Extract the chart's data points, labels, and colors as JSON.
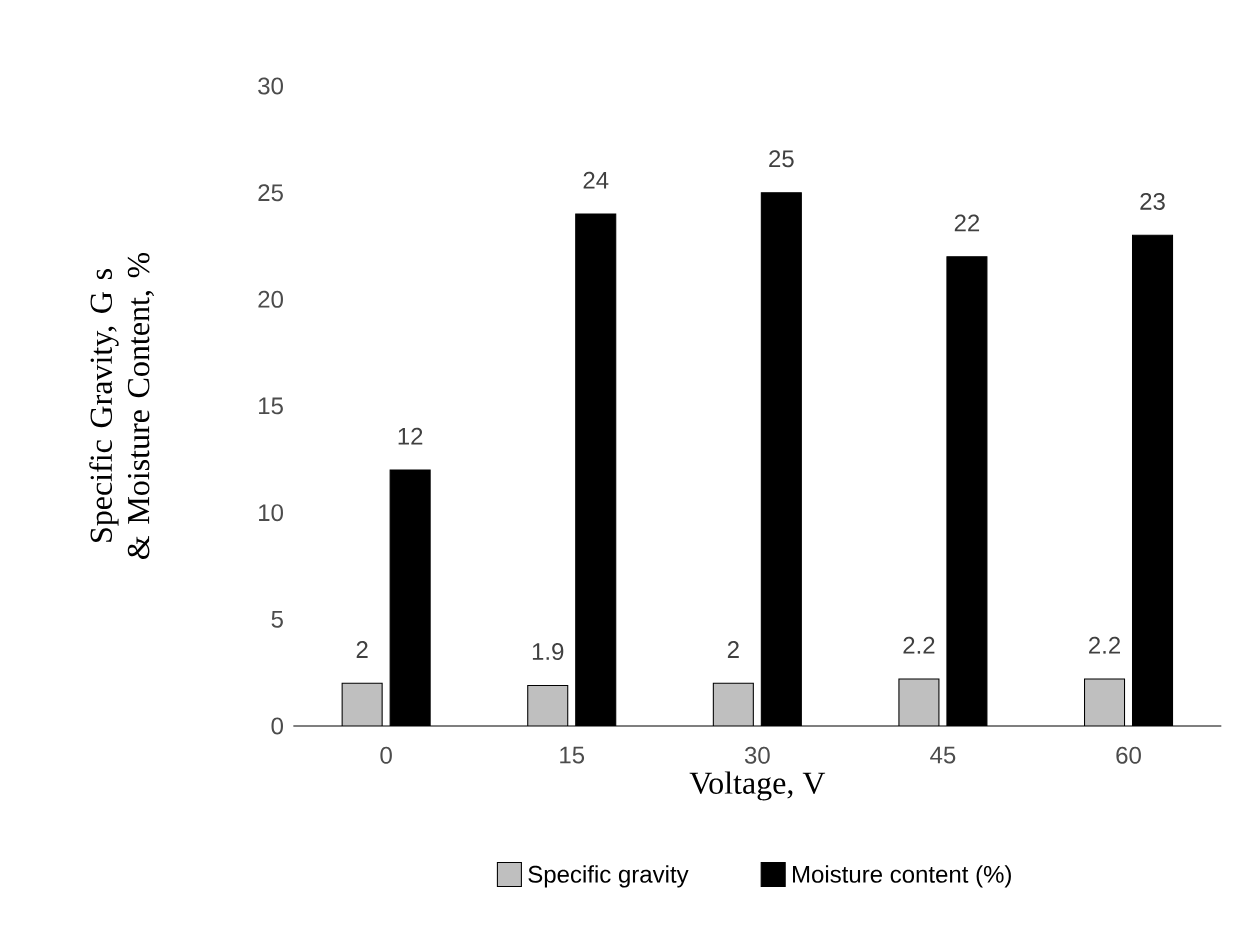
{
  "chart_data": {
    "type": "bar",
    "xlabel": "Voltage, V",
    "ylabel": "Specific Gravity, G s & Moisture Content, %",
    "categories": [
      "0",
      "15",
      "30",
      "45",
      "60"
    ],
    "series": [
      {
        "name": "Specific gravity",
        "color": "#bfbfbf",
        "values": [
          2,
          1.9,
          2,
          2.2,
          2.2
        ]
      },
      {
        "name": "Moisture content (%)",
        "color": "#000000",
        "values": [
          12,
          24,
          25,
          22,
          23
        ]
      }
    ],
    "ylim": [
      0,
      30
    ],
    "yticks": [
      0,
      5,
      10,
      15,
      20,
      25,
      30
    ],
    "data_labels": true,
    "legend": "bottom"
  }
}
